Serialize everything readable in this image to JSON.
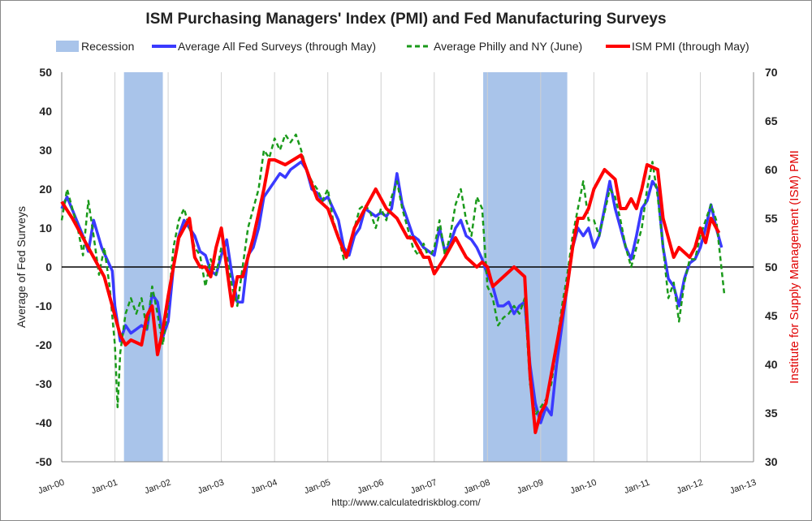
{
  "chart_data": {
    "type": "line",
    "title": "ISM Purchasing Managers' Index (PMI) and Fed Manufacturing Surveys",
    "ylabel": "Average of Fed Surveys",
    "y2label": "Institute for Supply Management (ISM) PMI",
    "source": "http://www.calculatedriskblog.com/",
    "ylim": [
      -50,
      50
    ],
    "yticks": [
      50,
      40,
      30,
      20,
      10,
      0,
      -10,
      -20,
      -30,
      -40,
      -50
    ],
    "y2lim": [
      30,
      70
    ],
    "y2ticks": [
      70,
      65,
      60,
      55,
      50,
      45,
      40,
      35,
      30
    ],
    "xlim": [
      2000,
      2013
    ],
    "xticks": [
      "Jan-00",
      "Jan-01",
      "Jan-02",
      "Jan-03",
      "Jan-04",
      "Jan-05",
      "Jan-06",
      "Jan-07",
      "Jan-08",
      "Jan-09",
      "Jan-10",
      "Jan-11",
      "Jan-12",
      "Jan-13"
    ],
    "legend": [
      "Recession",
      "Average All Fed Surveys (through May)",
      "Average Philly and NY (June)",
      "ISM PMI (through May)"
    ],
    "legend_position": "top",
    "recessions": [
      [
        2001.17,
        2001.9
      ],
      [
        2007.92,
        2009.5
      ]
    ],
    "colors": {
      "recession": "#a9c4ea",
      "fed": "#3a3aff",
      "philly": "#1a9a1a",
      "ism": "#ff0000"
    },
    "series": [
      {
        "name": "Average All Fed Surveys (through May)",
        "axis": "left",
        "x": [
          0,
          0.1,
          0.25,
          0.4,
          0.5,
          0.6,
          0.75,
          0.85,
          0.95,
          1.0,
          1.1,
          1.2,
          1.3,
          1.4,
          1.5,
          1.6,
          1.7,
          1.8,
          1.9,
          2.0,
          2.1,
          2.2,
          2.3,
          2.4,
          2.5,
          2.6,
          2.7,
          2.8,
          2.9,
          3.0,
          3.1,
          3.2,
          3.3,
          3.4,
          3.5,
          3.6,
          3.7,
          3.8,
          3.9,
          4.0,
          4.1,
          4.2,
          4.3,
          4.4,
          4.5,
          4.6,
          4.7,
          4.8,
          4.9,
          5.0,
          5.1,
          5.2,
          5.3,
          5.4,
          5.5,
          5.6,
          5.7,
          5.8,
          5.9,
          6.0,
          6.1,
          6.2,
          6.3,
          6.4,
          6.5,
          6.6,
          6.7,
          6.8,
          6.9,
          7.0,
          7.1,
          7.2,
          7.3,
          7.4,
          7.5,
          7.6,
          7.7,
          7.8,
          7.9,
          8.0,
          8.1,
          8.2,
          8.3,
          8.4,
          8.5,
          8.6,
          8.7,
          8.8,
          8.9,
          9.0,
          9.1,
          9.2,
          9.3,
          9.4,
          9.5,
          9.6,
          9.7,
          9.8,
          9.9,
          10.0,
          10.1,
          10.2,
          10.3,
          10.4,
          10.5,
          10.6,
          10.7,
          10.8,
          10.9,
          11.0,
          11.1,
          11.2,
          11.3,
          11.4,
          11.5,
          11.6,
          11.7,
          11.8,
          11.9,
          12.0,
          12.1,
          12.2,
          12.3,
          12.4
        ],
        "y": [
          15,
          18,
          13,
          8,
          4,
          12,
          5,
          2,
          -1,
          -10,
          -19,
          -15,
          -17,
          -16,
          -15,
          -16,
          -7,
          -9,
          -18,
          -14,
          0,
          8,
          12,
          10,
          8,
          4,
          3,
          -1,
          -2,
          3,
          7,
          -2,
          -9,
          -9,
          3,
          5,
          10,
          18,
          20,
          22,
          24,
          23,
          25,
          26,
          27,
          25,
          20,
          19,
          17,
          18,
          15,
          12,
          5,
          3,
          8,
          10,
          15,
          14,
          13,
          14,
          13,
          15,
          24,
          16,
          12,
          8,
          7,
          5,
          4,
          3,
          10,
          4,
          6,
          10,
          12,
          8,
          7,
          5,
          2,
          -2,
          -5,
          -10,
          -10,
          -9,
          -12,
          -10,
          -9,
          -25,
          -35,
          -40,
          -36,
          -38,
          -25,
          -15,
          -5,
          5,
          10,
          8,
          10,
          5,
          8,
          15,
          22,
          15,
          10,
          5,
          2,
          8,
          15,
          17,
          22,
          20,
          5,
          -3,
          -5,
          -10,
          -3,
          1,
          2,
          5,
          10,
          16,
          10,
          5
        ]
      },
      {
        "name": "Average Philly and NY (June)",
        "axis": "left",
        "x": [
          0,
          0.1,
          0.2,
          0.3,
          0.4,
          0.5,
          0.6,
          0.7,
          0.8,
          0.9,
          1.0,
          1.05,
          1.1,
          1.2,
          1.3,
          1.4,
          1.5,
          1.6,
          1.7,
          1.8,
          1.9,
          2.0,
          2.1,
          2.2,
          2.3,
          2.4,
          2.5,
          2.6,
          2.7,
          2.8,
          2.9,
          3.0,
          3.1,
          3.2,
          3.3,
          3.4,
          3.5,
          3.6,
          3.7,
          3.8,
          3.9,
          4.0,
          4.1,
          4.2,
          4.3,
          4.4,
          4.5,
          4.6,
          4.7,
          4.8,
          4.9,
          5.0,
          5.1,
          5.2,
          5.3,
          5.4,
          5.5,
          5.6,
          5.7,
          5.8,
          5.9,
          6.0,
          6.1,
          6.2,
          6.3,
          6.4,
          6.5,
          6.6,
          6.7,
          6.8,
          6.9,
          7.0,
          7.1,
          7.2,
          7.3,
          7.4,
          7.5,
          7.6,
          7.7,
          7.8,
          7.9,
          8.0,
          8.1,
          8.2,
          8.3,
          8.4,
          8.5,
          8.6,
          8.7,
          8.8,
          8.9,
          9.0,
          9.1,
          9.2,
          9.3,
          9.4,
          9.5,
          9.6,
          9.7,
          9.8,
          9.9,
          10.0,
          10.1,
          10.2,
          10.3,
          10.4,
          10.5,
          10.6,
          10.7,
          10.8,
          10.9,
          11.0,
          11.1,
          11.2,
          11.3,
          11.4,
          11.5,
          11.6,
          11.7,
          11.8,
          11.9,
          12.0,
          12.1,
          12.2,
          12.3,
          12.45
        ],
        "y": [
          12,
          20,
          15,
          10,
          3,
          17,
          8,
          -2,
          5,
          -5,
          -20,
          -36,
          -22,
          -12,
          -8,
          -12,
          -8,
          -16,
          -5,
          -12,
          -20,
          -10,
          5,
          12,
          15,
          10,
          5,
          3,
          -5,
          2,
          -2,
          5,
          3,
          -5,
          -10,
          0,
          10,
          15,
          20,
          30,
          28,
          33,
          30,
          34,
          32,
          34,
          30,
          25,
          22,
          20,
          17,
          20,
          12,
          8,
          2,
          5,
          10,
          15,
          16,
          14,
          10,
          15,
          12,
          18,
          22,
          15,
          10,
          5,
          3,
          6,
          2,
          5,
          12,
          3,
          8,
          16,
          20,
          12,
          8,
          18,
          15,
          -5,
          -8,
          -15,
          -13,
          -12,
          -10,
          -12,
          -8,
          -30,
          -38,
          -36,
          -34,
          -30,
          -20,
          -10,
          -2,
          8,
          15,
          22,
          12,
          12,
          8,
          14,
          20,
          18,
          12,
          5,
          0,
          5,
          10,
          20,
          27,
          18,
          5,
          -8,
          -4,
          -14,
          -4,
          2,
          2,
          8,
          12,
          16,
          12,
          -7
        ]
      },
      {
        "name": "ISM PMI (through May)",
        "axis": "right",
        "x": [
          0,
          0.2,
          0.4,
          0.6,
          0.8,
          1.0,
          1.1,
          1.2,
          1.3,
          1.5,
          1.6,
          1.7,
          1.8,
          1.9,
          2.0,
          2.1,
          2.2,
          2.3,
          2.4,
          2.5,
          2.6,
          2.7,
          2.8,
          2.9,
          3.0,
          3.2,
          3.3,
          3.4,
          3.5,
          3.6,
          3.8,
          3.9,
          4.0,
          4.2,
          4.5,
          4.6,
          4.8,
          5.0,
          5.2,
          5.35,
          5.5,
          5.7,
          5.9,
          6.1,
          6.3,
          6.4,
          6.5,
          6.6,
          6.7,
          6.8,
          6.9,
          7.0,
          7.2,
          7.4,
          7.5,
          7.6,
          7.8,
          7.9,
          8.0,
          8.1,
          8.3,
          8.5,
          8.7,
          8.8,
          8.9,
          9.0,
          9.1,
          9.3,
          9.5,
          9.6,
          9.7,
          9.8,
          9.9,
          10.0,
          10.2,
          10.4,
          10.5,
          10.6,
          10.7,
          10.8,
          10.9,
          11.0,
          11.2,
          11.3,
          11.4,
          11.5,
          11.6,
          11.8,
          11.9,
          12.0,
          12.1,
          12.2,
          12.35
        ],
        "y": [
          56.7,
          55,
          53,
          51,
          49,
          45,
          43,
          42,
          42.5,
          42,
          45,
          46,
          41,
          43.5,
          47,
          50,
          53,
          54,
          55,
          51,
          50,
          50,
          49,
          52,
          54,
          46,
          49,
          49,
          51,
          53,
          58,
          61,
          61,
          60.5,
          61.5,
          60,
          57,
          56,
          53,
          51,
          54,
          56,
          58,
          56,
          55,
          54,
          53,
          53,
          52,
          51,
          51,
          49.3,
          51,
          53,
          52,
          51,
          50,
          50.5,
          50,
          48,
          49,
          50,
          49,
          39,
          33,
          35,
          36,
          42,
          48,
          52,
          55,
          55,
          56,
          58,
          60,
          59,
          56,
          56,
          57,
          56,
          58,
          60.5,
          60,
          55,
          53,
          51,
          52,
          51,
          52,
          54,
          52.5,
          55,
          53.5
        ]
      }
    ]
  }
}
